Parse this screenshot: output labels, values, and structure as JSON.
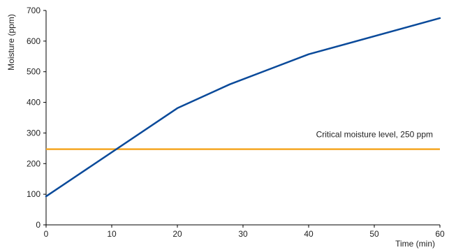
{
  "chart_data": {
    "type": "line",
    "title": "",
    "xlabel": "Time (min)",
    "ylabel": "Moisture (ppm)",
    "xlim": [
      0,
      60
    ],
    "ylim": [
      0,
      700
    ],
    "xticks": [
      0,
      10,
      20,
      30,
      40,
      50,
      60
    ],
    "yticks": [
      0,
      100,
      200,
      300,
      400,
      500,
      600,
      700
    ],
    "grid": false,
    "series": [
      {
        "color": "#0a4a9a",
        "x": [
          0,
          20,
          28,
          40,
          60
        ],
        "y": [
          93,
          381,
          459,
          557,
          675
        ]
      }
    ],
    "threshold": {
      "value": 247,
      "label": "Critical moisture level, 250 ppm",
      "color": "#f5a623"
    }
  }
}
